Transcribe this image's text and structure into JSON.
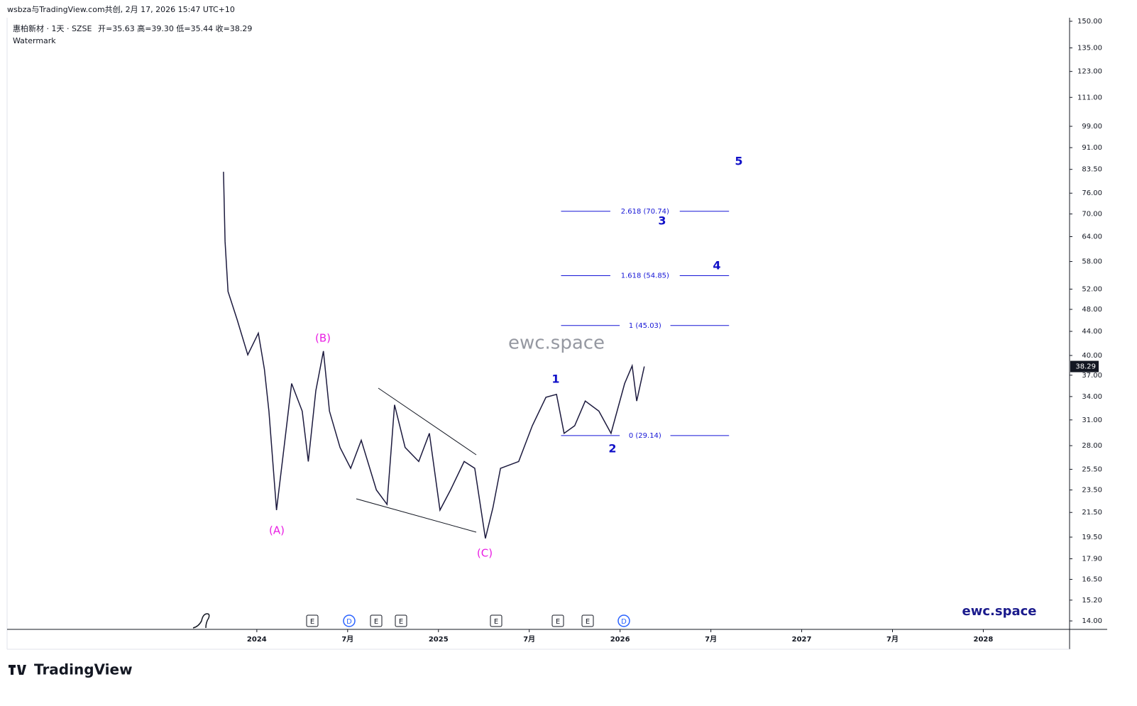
{
  "header": {
    "credit": "wsbza与TradingView.com共创, 2月 17, 2026 15:47 UTC+10",
    "symbol": "惠柏新材 · 1天 · SZSE",
    "ohlc": "开=35.63 高=39.30 低=35.44 收=38.29",
    "watermark_label": "Watermark"
  },
  "watermark": "ewc.space",
  "brand": "ewc.space",
  "logo": "TradingView",
  "chart_data": {
    "type": "line",
    "log_scale": true,
    "color": "#1c1a3e",
    "x": [
      -2.2,
      -2.1,
      -1.9,
      -1.3,
      -0.6,
      0.1,
      0.5,
      0.8,
      1.3,
      1.8,
      2.3,
      3.0,
      3.4,
      3.9,
      4.4,
      4.8,
      5.5,
      6.2,
      6.9,
      7.9,
      8.6,
      9.1,
      9.8,
      10.7,
      11.4,
      12.1,
      12.8,
      13.7,
      14.4,
      15.1,
      15.6,
      16.1,
      17.3,
      18.2,
      19.1,
      19.8,
      20.3,
      21.0,
      21.7,
      22.6,
      23.4,
      24.3,
      24.8,
      25.1,
      25.6
    ],
    "series": [
      {
        "name": "惠柏新材",
        "color": "#1c1a3e",
        "values": [
          82.7,
          62.8,
          51.5,
          46.1,
          40.1,
          43.7,
          37.9,
          32.1,
          21.7,
          27.8,
          35.8,
          32.1,
          26.3,
          34.8,
          40.7,
          32.1,
          27.8,
          25.6,
          28.6,
          23.5,
          22.2,
          32.9,
          27.8,
          26.3,
          29.4,
          21.7,
          23.5,
          26.3,
          25.6,
          19.4,
          21.9,
          25.6,
          26.3,
          30.3,
          33.9,
          34.3,
          29.4,
          30.3,
          33.4,
          32.1,
          29.4,
          35.8,
          38.4,
          33.4,
          38.29
        ]
      }
    ],
    "last_price": 38.29,
    "xlim": [
      -16.5,
      53.7
    ],
    "ylim": [
      13.54,
      152.1
    ],
    "xticks": [
      {
        "value": 0,
        "label": "2024"
      },
      {
        "value": 6,
        "label": "7月"
      },
      {
        "value": 12,
        "label": "2025"
      },
      {
        "value": 18,
        "label": "7月"
      },
      {
        "value": 24,
        "label": "2026"
      },
      {
        "value": 30,
        "label": "7月"
      },
      {
        "value": 36,
        "label": "2027"
      },
      {
        "value": 42,
        "label": "7月"
      },
      {
        "value": 48,
        "label": "2028"
      }
    ],
    "yticks": [
      {
        "value": 150,
        "label": "150.00"
      },
      {
        "value": 135,
        "label": "135.00"
      },
      {
        "value": 123,
        "label": "123.00"
      },
      {
        "value": 111,
        "label": "111.00"
      },
      {
        "value": 99,
        "label": "99.00"
      },
      {
        "value": 91,
        "label": "91.00"
      },
      {
        "value": 83.5,
        "label": "83.50"
      },
      {
        "value": 76,
        "label": "76.00"
      },
      {
        "value": 70,
        "label": "70.00"
      },
      {
        "value": 64,
        "label": "64.00"
      },
      {
        "value": 58,
        "label": "58.00"
      },
      {
        "value": 52,
        "label": "52.00"
      },
      {
        "value": 48,
        "label": "48.00"
      },
      {
        "value": 44,
        "label": "44.00"
      },
      {
        "value": 40,
        "label": "40.00"
      },
      {
        "value": 37,
        "label": "37.00"
      },
      {
        "value": 34,
        "label": "34.00"
      },
      {
        "value": 31,
        "label": "31.00"
      },
      {
        "value": 28,
        "label": "28.00"
      },
      {
        "value": 25.5,
        "label": "25.50"
      },
      {
        "value": 23.5,
        "label": "23.50"
      },
      {
        "value": 21.5,
        "label": "21.50"
      },
      {
        "value": 19.5,
        "label": "19.50"
      },
      {
        "value": 17.9,
        "label": "17.90"
      },
      {
        "value": 16.5,
        "label": "16.50"
      },
      {
        "value": 15.2,
        "label": "15.20"
      },
      {
        "value": 14,
        "label": "14.00"
      }
    ],
    "fib": {
      "x": [
        20.1,
        31.2
      ],
      "levels": [
        {
          "value": 70.74,
          "label": "2.618 (70.74)"
        },
        {
          "value": 54.85,
          "label": "1.618 (54.85)"
        },
        {
          "value": 45.03,
          "label": "1 (45.03)"
        },
        {
          "value": 29.14,
          "label": "0 (29.14)"
        }
      ]
    },
    "annotations": [
      "(A)",
      "(B)",
      "(C)",
      "1",
      "2",
      "3",
      "4",
      "5"
    ],
    "events": [
      "E",
      "D",
      "E",
      "E",
      "E",
      "E",
      "E",
      "D"
    ]
  }
}
